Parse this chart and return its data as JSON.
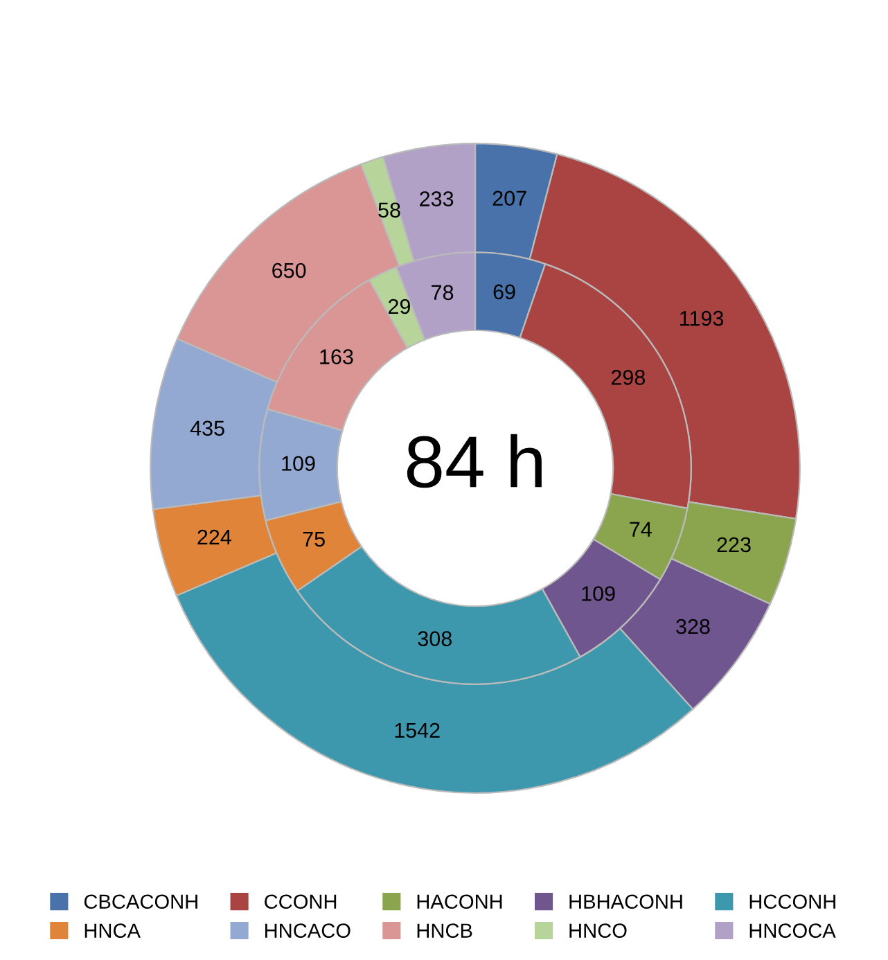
{
  "chart_data": {
    "type": "donut",
    "title": "84 h",
    "categories": [
      "CBCACONH",
      "CCONH",
      "HACONH",
      "HBHACONH",
      "HCCONH",
      "HNCA",
      "HNCACO",
      "HNCB",
      "HNCO",
      "HNCOCA"
    ],
    "colors": [
      "#4a72aa",
      "#a94442",
      "#8aa54e",
      "#70568f",
      "#3d97ad",
      "#e0843a",
      "#93a9d1",
      "#d99694",
      "#b7d59a",
      "#b2a1c7"
    ],
    "series": [
      {
        "values": [
          207,
          1193,
          223,
          328,
          1542,
          224,
          435,
          650,
          58,
          233
        ]
      },
      {
        "values": [
          69,
          298,
          74,
          109,
          308,
          75,
          109,
          163,
          29,
          78
        ]
      }
    ],
    "data_labels": true,
    "legend": "bottom"
  }
}
